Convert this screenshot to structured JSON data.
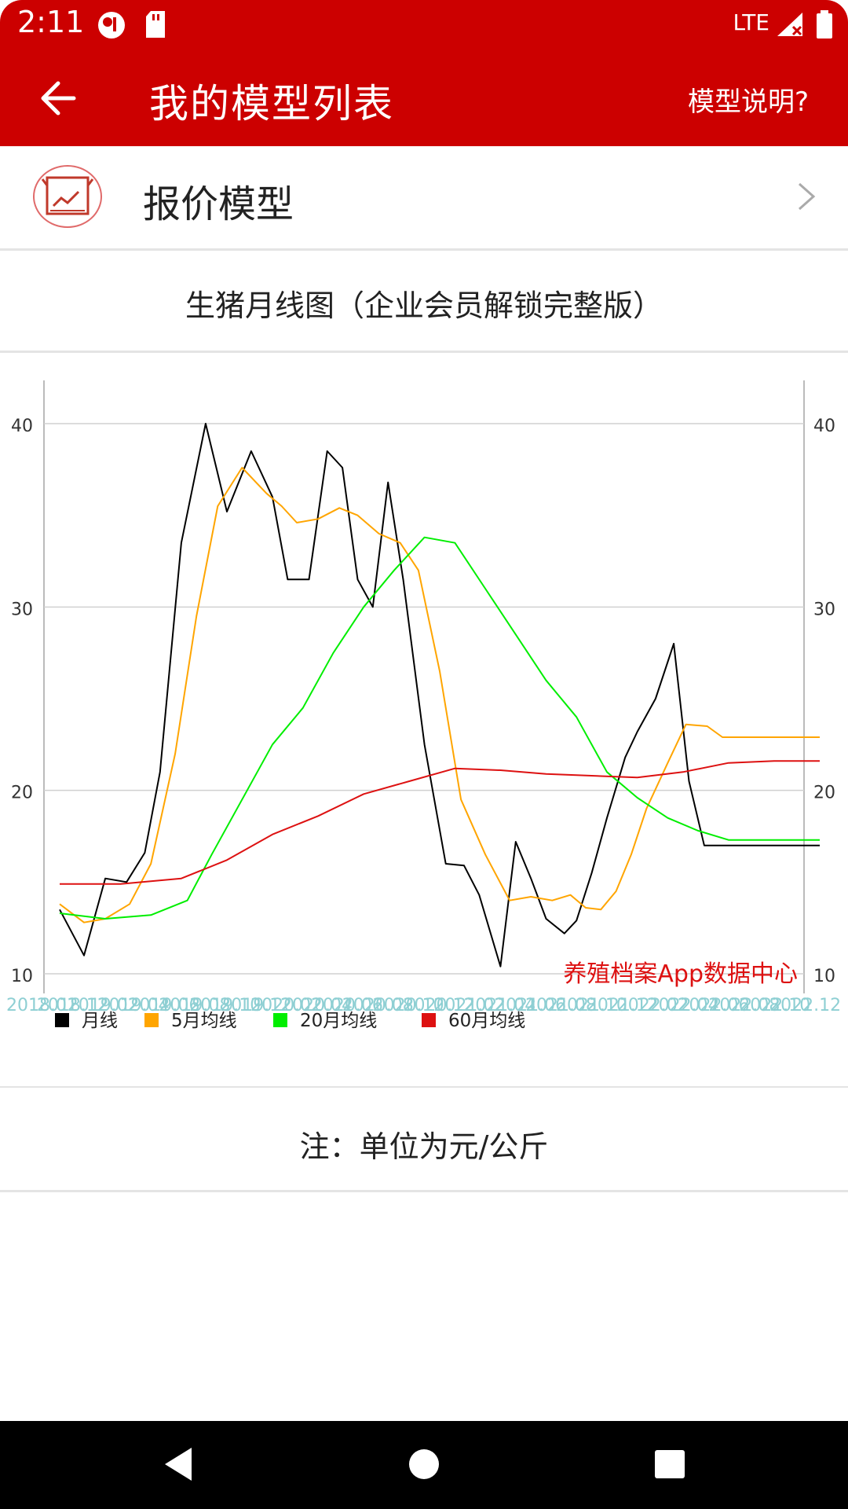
{
  "status": {
    "time": "2:11",
    "network": "LTE",
    "icons": [
      "record-icon",
      "sdcard-icon",
      "signal-icon",
      "battery-icon"
    ]
  },
  "appbar": {
    "title": "我的模型列表",
    "action": "模型说明?",
    "back_icon": "arrow-back-icon",
    "background": "#cc0000"
  },
  "model_row": {
    "label": "报价模型",
    "icon": "chart-box-icon",
    "chevron": "chevron-right-icon"
  },
  "chart_section": {
    "title": "生猪月线图（企业会员解锁完整版）"
  },
  "chart_data": {
    "type": "line",
    "title": "",
    "xlabel": "",
    "ylabel": "",
    "ylim": [
      7,
      43
    ],
    "yticks": [
      10,
      20,
      30,
      40
    ],
    "grid": true,
    "legend_position": "bottom-left",
    "watermark": "养殖档案App数据中心",
    "x_tick_labels": [
      "2018.01",
      "2018.12",
      "2019.02",
      "2019.04",
      "2019.06",
      "2019.08",
      "2019.10",
      "2019.12",
      "2020.02",
      "2020.04",
      "2020.06",
      "2020.08",
      "2020.10",
      "2020.12",
      "2021.02",
      "2021.04",
      "2021.06",
      "2021.08",
      "2021.10",
      "2021.12",
      "2022.02",
      "2022.04",
      "2022.06",
      "2022.08",
      "2022.10",
      "2022.12"
    ],
    "colors": {
      "month": "#000000",
      "ma5": "#ffa500",
      "ma20": "#00ee00",
      "ma60": "#dd1111"
    },
    "series": [
      {
        "name": "月线",
        "x": [
          0,
          0.8,
          1.5,
          2.2,
          2.8,
          3.3,
          4.0,
          4.8,
          5.5,
          6.3,
          7.0,
          7.5,
          8.2,
          8.8,
          9.3,
          9.8,
          10.3,
          10.8,
          11.3,
          12.0,
          12.7,
          13.3,
          13.8,
          14.5,
          15.0,
          15.5,
          16.0,
          16.6,
          17.0,
          17.5,
          18.0,
          18.6,
          19.0,
          19.6,
          20.2,
          20.7,
          21.2,
          21.8,
          22.4,
          23.0,
          23.5,
          24.0,
          24.5,
          25.0
        ],
        "values": [
          13.5,
          11.0,
          15.2,
          15.0,
          16.6,
          21.0,
          33.5,
          40.0,
          35.2,
          38.5,
          36.0,
          31.5,
          31.5,
          38.5,
          37.6,
          31.5,
          30.0,
          36.8,
          31.5,
          22.5,
          16.0,
          15.9,
          14.3,
          10.4,
          17.2,
          15.2,
          13.0,
          12.2,
          12.9,
          15.5,
          18.5,
          21.8,
          23.2,
          25.0,
          28.0,
          20.5,
          17.0,
          17.0,
          17.0,
          17.0,
          17.0,
          17.0,
          17.0,
          17.0
        ]
      },
      {
        "name": "5月均线",
        "x": [
          0,
          0.8,
          1.5,
          2.3,
          3.0,
          3.8,
          4.5,
          5.2,
          6.0,
          6.8,
          7.3,
          7.8,
          8.5,
          9.2,
          9.8,
          10.5,
          11.2,
          11.8,
          12.5,
          13.2,
          14.0,
          14.8,
          15.5,
          16.2,
          16.8,
          17.3,
          17.8,
          18.3,
          18.8,
          19.3,
          20.0,
          20.6,
          21.3,
          21.8,
          22.4,
          23.0,
          23.6,
          24.2,
          24.7,
          25.0
        ],
        "values": [
          13.8,
          12.8,
          13.0,
          13.8,
          16.0,
          22.0,
          29.5,
          35.5,
          37.6,
          36.2,
          35.5,
          34.6,
          34.8,
          35.4,
          35.0,
          34.0,
          33.5,
          32.0,
          26.5,
          19.5,
          16.5,
          14.0,
          14.2,
          14.0,
          14.3,
          13.6,
          13.5,
          14.5,
          16.5,
          19.0,
          21.5,
          23.6,
          23.5,
          22.9,
          22.9,
          22.9,
          22.9,
          22.9,
          22.9,
          22.9
        ]
      },
      {
        "name": "20月均线",
        "x": [
          0,
          1.5,
          3.0,
          4.2,
          5.0,
          6.0,
          7.0,
          8.0,
          9.0,
          10.0,
          11.0,
          12.0,
          13.0,
          14.0,
          15.0,
          16.0,
          17.0,
          18.0,
          19.0,
          20.0,
          21.0,
          22.0,
          23.0,
          24.0,
          25.0
        ],
        "values": [
          13.3,
          13.0,
          13.2,
          14.0,
          16.5,
          19.5,
          22.5,
          24.5,
          27.5,
          30.0,
          32.0,
          33.8,
          33.5,
          31.0,
          28.5,
          26.0,
          24.0,
          21.0,
          19.6,
          18.5,
          17.8,
          17.3,
          17.3,
          17.3,
          17.3
        ]
      },
      {
        "name": "60月均线",
        "x": [
          0,
          2.0,
          4.0,
          5.5,
          7.0,
          8.5,
          10.0,
          11.5,
          13.0,
          14.5,
          16.0,
          17.5,
          19.0,
          20.5,
          22.0,
          23.5,
          25.0
        ],
        "values": [
          14.9,
          14.9,
          15.2,
          16.2,
          17.6,
          18.6,
          19.8,
          20.5,
          21.2,
          21.1,
          20.9,
          20.8,
          20.7,
          21.0,
          21.5,
          21.6,
          21.6
        ]
      }
    ]
  },
  "note": "注：单位为元/公斤",
  "navbar": {
    "back_icon": "nav-back-icon",
    "home_icon": "nav-home-icon",
    "recents_icon": "nav-recents-icon"
  }
}
